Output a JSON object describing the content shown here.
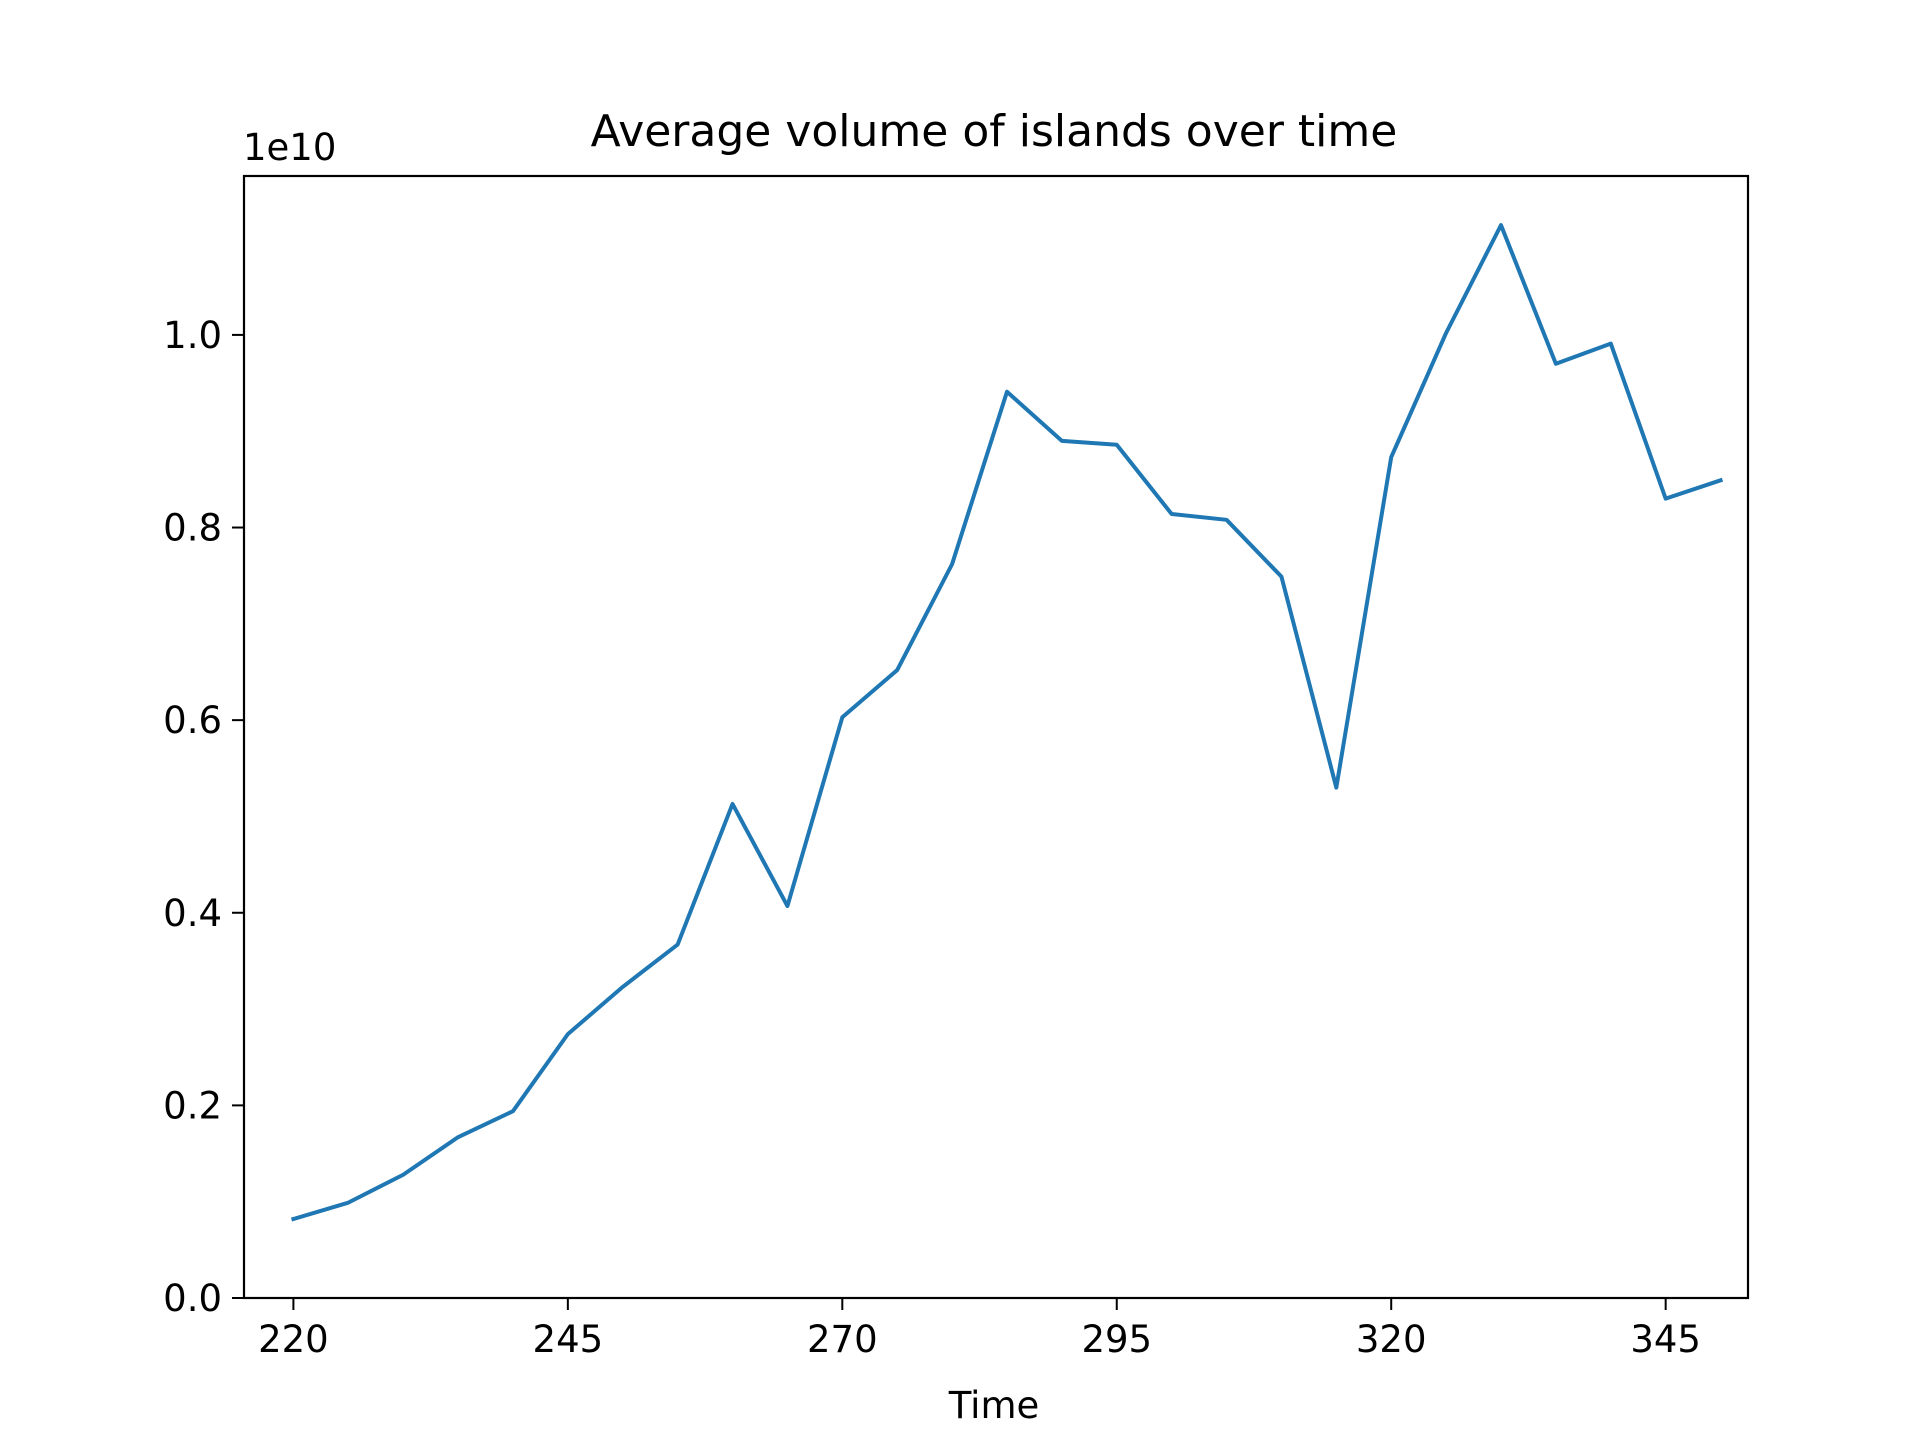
{
  "chart_data": {
    "type": "line",
    "title": "Average volume of islands over time",
    "xlabel": "Time",
    "ylabel": "",
    "y_offset_label": "1e10",
    "xlim": [
      215.5,
      352.5
    ],
    "ylim": [
      0,
      11.65
    ],
    "x_ticks": [
      220,
      245,
      270,
      295,
      320,
      345
    ],
    "y_ticks": [
      0.0,
      0.2,
      0.4,
      0.6,
      0.8,
      1.0
    ],
    "y_tick_labels": [
      "0.0",
      "0.2",
      "0.4",
      "0.6",
      "0.8",
      "1.0"
    ],
    "y_units_note": "y values in units of 1e9 (axis multiplier 1e10)",
    "grid": false,
    "legend": "none",
    "series": [
      {
        "color": "#1f77b4",
        "x": [
          220,
          225,
          230,
          235,
          240,
          245,
          250,
          255,
          260,
          265,
          270,
          275,
          280,
          285,
          290,
          295,
          300,
          305,
          310,
          315,
          320,
          325,
          330,
          335,
          340,
          345,
          350
        ],
        "y": [
          0.82,
          0.99,
          1.28,
          1.67,
          1.94,
          2.74,
          3.23,
          3.67,
          5.13,
          4.07,
          6.03,
          6.52,
          7.62,
          9.41,
          8.9,
          8.86,
          8.14,
          8.08,
          7.49,
          5.3,
          8.73,
          10.02,
          11.14,
          9.7,
          9.91,
          8.3,
          8.49
        ]
      }
    ]
  }
}
